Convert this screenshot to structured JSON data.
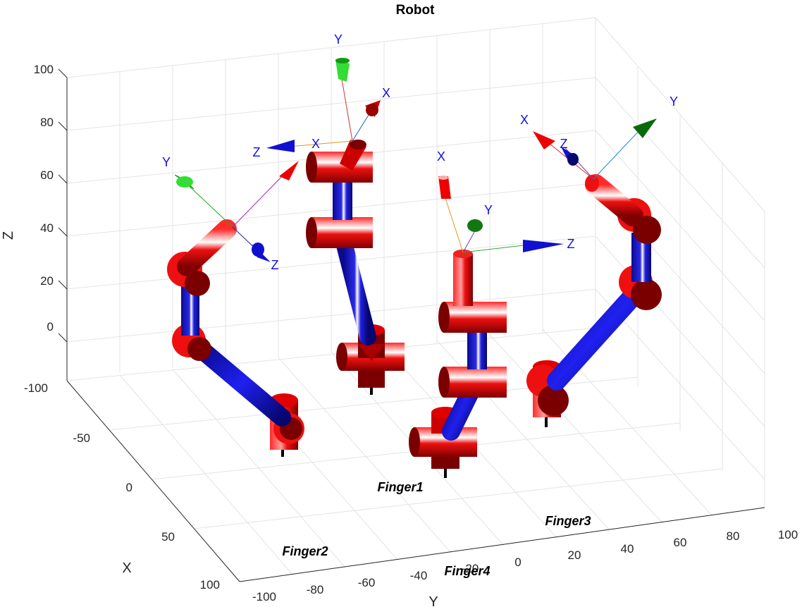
{
  "title": "Robot",
  "axes": {
    "x_label": "X",
    "y_label": "Y",
    "z_label": "Z",
    "x_ticks": [
      "-100",
      "-50",
      "0",
      "50",
      "100"
    ],
    "y_ticks": [
      "-100",
      "-80",
      "-60",
      "-40",
      "-20",
      "0",
      "20",
      "40",
      "60",
      "80",
      "100"
    ],
    "z_ticks": [
      "0",
      "20",
      "40",
      "60",
      "80",
      "100"
    ]
  },
  "fingers": [
    {
      "id": "finger1",
      "label": "Finger1"
    },
    {
      "id": "finger2",
      "label": "Finger2"
    },
    {
      "id": "finger3",
      "label": "Finger3"
    },
    {
      "id": "finger4",
      "label": "Finger4"
    }
  ],
  "frame_labels": {
    "x": "X",
    "y": "Y",
    "z": "Z"
  },
  "colors": {
    "link": "#1010c8",
    "joint": "#e00000",
    "joint_dark": "#700000",
    "axis_x": "#e00000",
    "axis_y": "#22cc22",
    "axis_z": "#1010d0",
    "frame_text": "#1010e0"
  }
}
